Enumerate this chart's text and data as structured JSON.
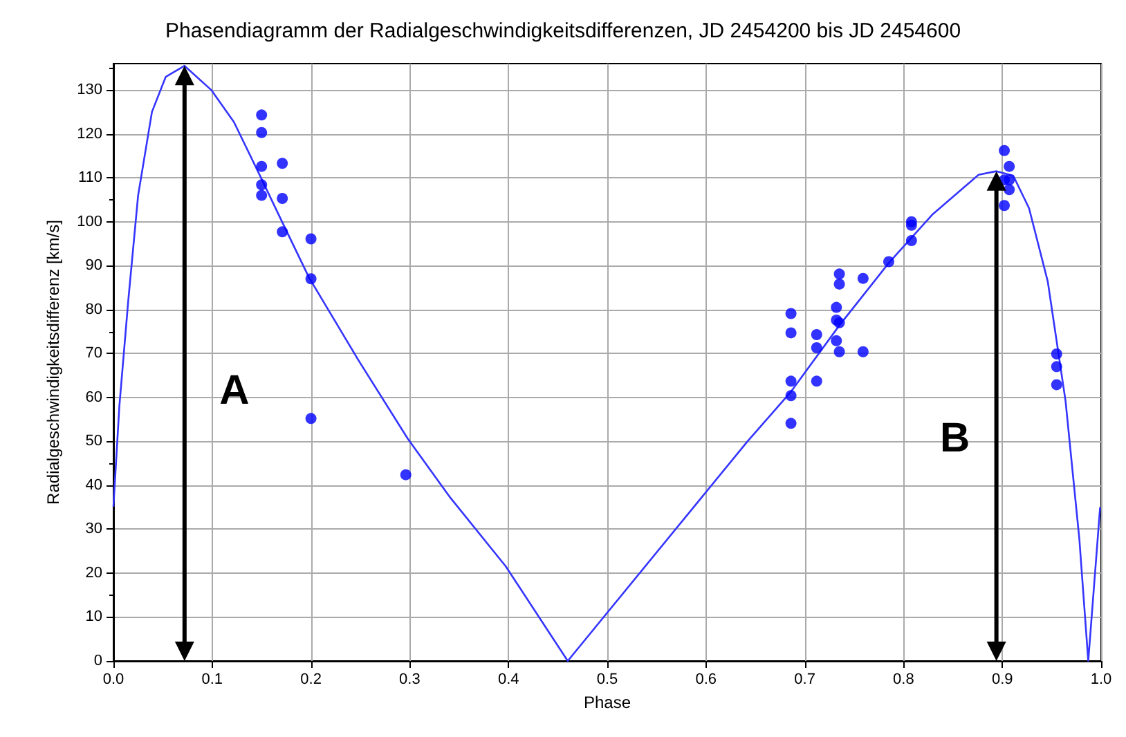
{
  "chart_data": {
    "type": "scatter",
    "title": "Phasendiagramm der Radialgeschwindigkeitsdifferenzen, JD 2454200 bis JD 2454600",
    "xlabel": "Phase",
    "ylabel": "Radialgeschwindigkeitsdifferenz [km/s]",
    "xlim": [
      0,
      1
    ],
    "xticks": [
      {
        "value": 0,
        "label": "0.0"
      },
      0.1,
      0.2,
      0.3,
      0.4,
      0.5,
      0.6,
      0.7,
      0.8,
      0.9,
      {
        "value": 1,
        "label": "1.0"
      }
    ],
    "ylim": [
      0,
      136
    ],
    "yticks": [
      0,
      10,
      20,
      30,
      40,
      50,
      60,
      70,
      80,
      90,
      100,
      110,
      120,
      130
    ],
    "grid": true,
    "series": [
      {
        "color": "#0000ff",
        "marker": "circle",
        "x": [
          0.15,
          0.15,
          0.15,
          0.15,
          0.15,
          0.171,
          0.171,
          0.171,
          0.2,
          0.2,
          0.2,
          0.296,
          0.686,
          0.686,
          0.686,
          0.686,
          0.686,
          0.712,
          0.712,
          0.712,
          0.732,
          0.732,
          0.732,
          0.735,
          0.735,
          0.735,
          0.735,
          0.759,
          0.759,
          0.785,
          0.808,
          0.808,
          0.808,
          0.902,
          0.902,
          0.902,
          0.907,
          0.907,
          0.907,
          0.955,
          0.955,
          0.955
        ],
        "values": [
          124.3,
          120.3,
          112.6,
          108.4,
          106.0,
          113.3,
          105.3,
          97.7,
          96.1,
          87.0,
          55.2,
          42.4,
          79.1,
          74.7,
          63.7,
          60.4,
          54.1,
          74.3,
          71.3,
          63.7,
          80.5,
          77.6,
          72.9,
          88.1,
          85.8,
          77.0,
          70.4,
          87.1,
          70.4,
          90.9,
          100.0,
          99.2,
          95.7,
          116.2,
          109.5,
          103.7,
          112.6,
          109.5,
          107.3,
          69.9,
          67.0,
          62.9
        ]
      },
      {
        "type": "line",
        "color": "#3535ff",
        "marker": "none",
        "x": [
          0,
          0.006,
          0.015,
          0.025,
          0.039,
          0.053,
          0.072,
          0.099,
          0.122,
          0.149,
          0.169,
          0.198,
          0.248,
          0.298,
          0.341,
          0.397,
          0.46,
          0.642,
          0.686,
          0.735,
          0.785,
          0.829,
          0.876,
          0.894,
          0.911,
          0.927,
          0.946,
          0.964,
          0.978,
          0.987,
          0.999
        ],
        "values": [
          35.1,
          58,
          82,
          106,
          125,
          133,
          135.5,
          130,
          122.7,
          110.2,
          100.8,
          87.3,
          68.5,
          50.6,
          37.2,
          21.6,
          0,
          50,
          61.3,
          76.4,
          90.6,
          101.6,
          110.7,
          111.5,
          110.5,
          103.1,
          86.4,
          59.2,
          27.7,
          0,
          35
        ]
      }
    ],
    "annotations": [
      "A",
      "B"
    ]
  }
}
